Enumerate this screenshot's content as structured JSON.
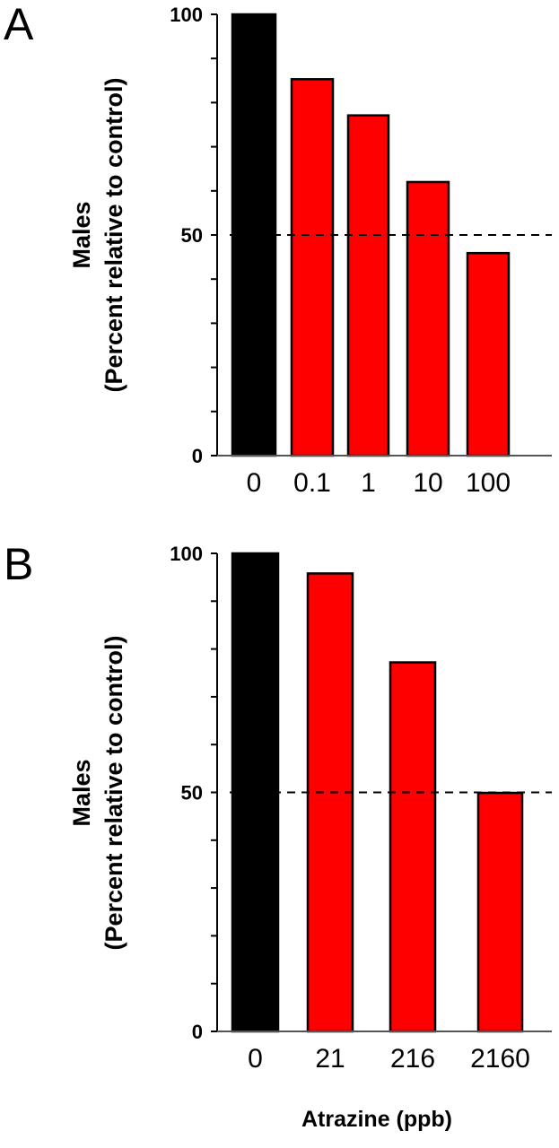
{
  "chart_data": [
    {
      "type": "bar",
      "panel_label": "A",
      "categories": [
        "0",
        "0.1",
        "1",
        "10",
        "100"
      ],
      "values": [
        100,
        85.3,
        77.1,
        62.0,
        45.9
      ],
      "colors": [
        "#000000",
        "#ff0000",
        "#ff0000",
        "#ff0000",
        "#ff0000"
      ],
      "ylabel_line1": "Males",
      "ylabel_line2": "(Percent relative to control)",
      "ylim": [
        0,
        100
      ],
      "yticks_labeled": [
        "0",
        "50",
        "100"
      ],
      "minor_tick_step": 10,
      "reference_line": 50,
      "grid": false
    },
    {
      "type": "bar",
      "panel_label": "B",
      "categories": [
        "0",
        "21",
        "216",
        "2160"
      ],
      "values": [
        100,
        95.8,
        77.2,
        49.9
      ],
      "colors": [
        "#000000",
        "#ff0000",
        "#ff0000",
        "#ff0000"
      ],
      "ylabel_line1": "Males",
      "ylabel_line2": "(Percent relative to control)",
      "xlabel": "Atrazine (ppb)",
      "ylim": [
        0,
        100
      ],
      "yticks_labeled": [
        "0",
        "50",
        "100"
      ],
      "minor_tick_step": 10,
      "reference_line": 50,
      "grid": false
    }
  ]
}
